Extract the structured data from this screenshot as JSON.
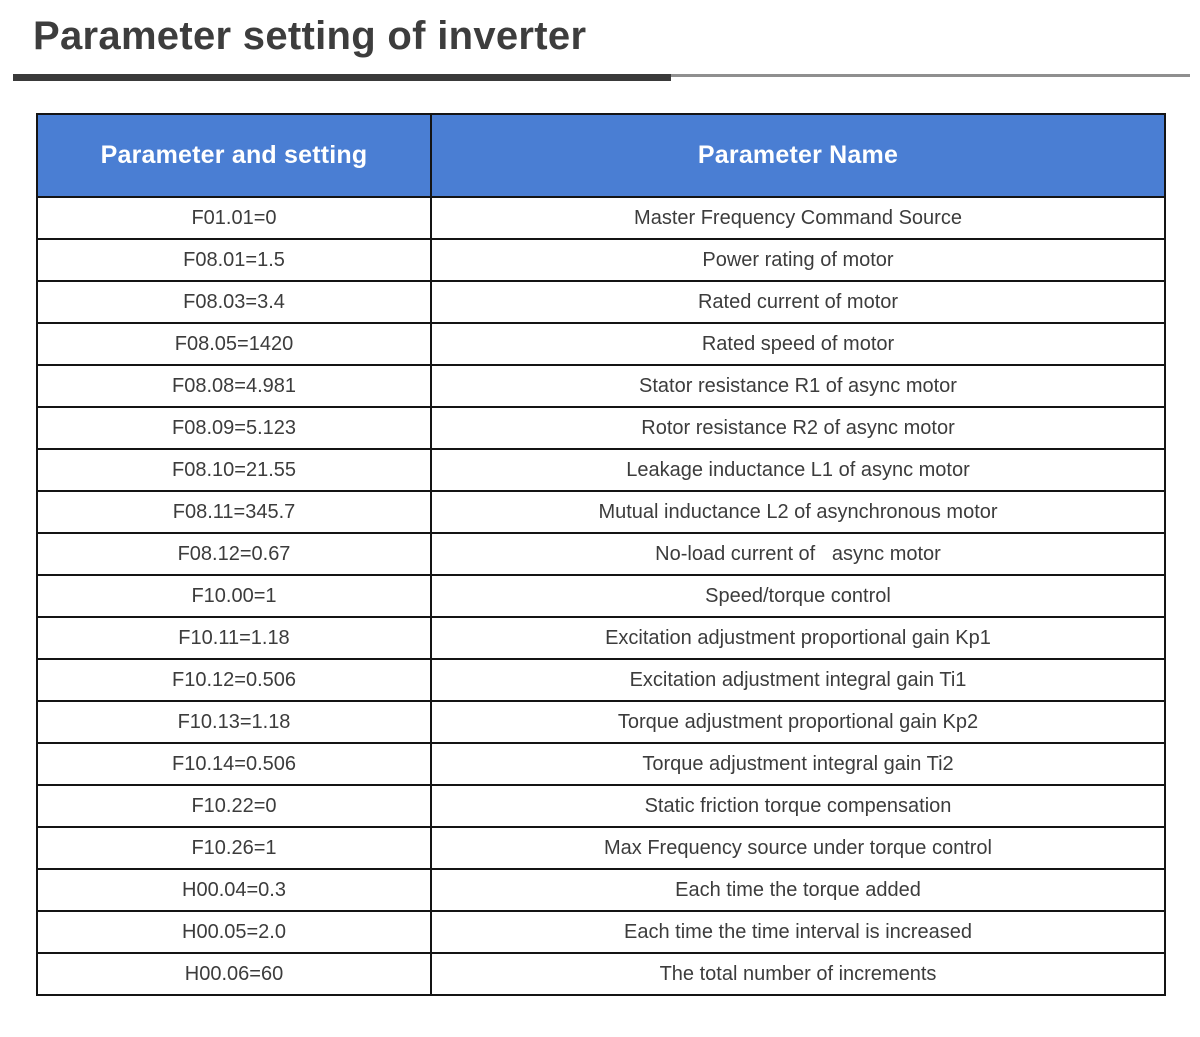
{
  "page": {
    "title": "Parameter setting of inverter"
  },
  "colors": {
    "header_bg": "#4a7ed3",
    "header_text": "#ffffff",
    "title_text": "#3d3d3d",
    "underline_dark": "#3a3a3a",
    "underline_light": "#8f8f8f",
    "body_text": "#3c3c3c",
    "table_border": "#141414"
  },
  "table": {
    "headers": [
      "Parameter and setting",
      "Parameter Name"
    ],
    "rows": [
      {
        "setting": "F01.01=0",
        "name": "Master Frequency Command Source"
      },
      {
        "setting": "F08.01=1.5",
        "name": "Power rating of motor"
      },
      {
        "setting": "F08.03=3.4",
        "name": "Rated current of motor"
      },
      {
        "setting": "F08.05=1420",
        "name": "Rated speed of motor"
      },
      {
        "setting": "F08.08=4.981",
        "name": "Stator resistance R1 of async motor"
      },
      {
        "setting": "F08.09=5.123",
        "name": "Rotor resistance R2 of async motor"
      },
      {
        "setting": "F08.10=21.55",
        "name": "Leakage inductance L1 of async motor"
      },
      {
        "setting": "F08.11=345.7",
        "name": "Mutual inductance L2 of asynchronous motor"
      },
      {
        "setting": "F08.12=0.67",
        "name": "No-load current of   async motor"
      },
      {
        "setting": "F10.00=1",
        "name": "Speed/torque control"
      },
      {
        "setting": "F10.11=1.18",
        "name": "Excitation adjustment proportional gain Kp1"
      },
      {
        "setting": "F10.12=0.506",
        "name": "Excitation adjustment integral gain Ti1"
      },
      {
        "setting": "F10.13=1.18",
        "name": "Torque adjustment proportional gain Kp2"
      },
      {
        "setting": "F10.14=0.506",
        "name": "Torque adjustment integral gain Ti2"
      },
      {
        "setting": "F10.22=0",
        "name": "Static friction torque compensation"
      },
      {
        "setting": "F10.26=1",
        "name": "Max Frequency source under torque control"
      },
      {
        "setting": "H00.04=0.3",
        "name": "Each time the torque added"
      },
      {
        "setting": "H00.05=2.0",
        "name": "Each time the time interval is increased"
      },
      {
        "setting": "H00.06=60",
        "name": "The total number of increments"
      }
    ]
  }
}
